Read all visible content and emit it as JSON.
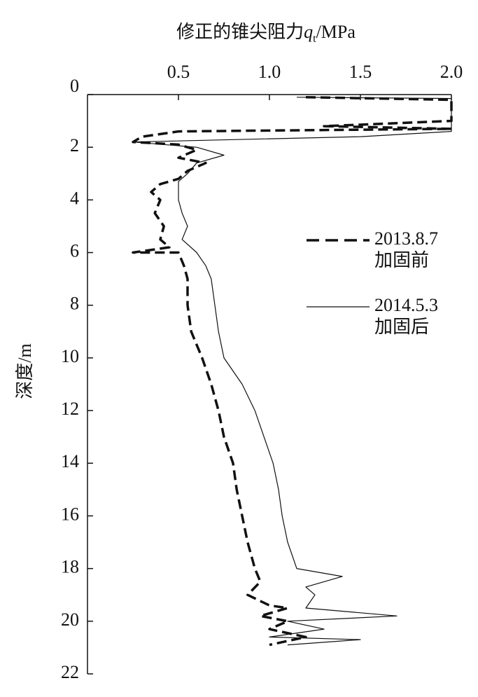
{
  "chart_data": {
    "type": "line",
    "xlabel": "修正的锥尖阻力",
    "xlabel_var": "q",
    "xlabel_sub": "t",
    "xlabel_unit": "/MPa",
    "ylabel": "深度/m",
    "xlim": [
      0,
      2.0
    ],
    "xticks": [
      0.5,
      {
        "value": 1.0,
        "label": "1.0"
      },
      1.5,
      {
        "value": 2.0,
        "label": "2.0"
      }
    ],
    "ylim": [
      0,
      22
    ],
    "yticks": [
      0,
      2,
      4,
      6,
      8,
      10,
      12,
      14,
      16,
      18,
      20,
      22
    ],
    "y_inverted": true,
    "x_axis_position": "top",
    "series": [
      {
        "name": "2013.8.7",
        "description": "加固前",
        "color": "#111111",
        "dashed": true,
        "x": [
          1.2,
          2.0,
          2.0,
          1.3,
          2.0,
          0.5,
          0.3,
          0.25,
          0.5,
          0.6,
          0.5,
          0.65,
          0.55,
          0.5,
          0.4,
          0.35,
          0.4,
          0.37,
          0.42,
          0.4,
          0.45,
          0.25,
          0.5,
          0.53,
          0.55,
          0.55,
          0.57,
          0.63,
          0.68,
          0.72,
          0.75,
          0.8,
          0.82,
          0.85,
          0.88,
          0.92,
          0.95,
          0.88,
          1.0,
          1.1,
          0.95,
          1.1,
          1.0,
          1.2,
          1.0
        ],
        "y": [
          0.1,
          0.2,
          1.0,
          1.2,
          1.3,
          1.4,
          1.6,
          1.8,
          1.9,
          2.1,
          2.4,
          2.6,
          2.9,
          3.2,
          3.4,
          3.7,
          4.0,
          4.5,
          5.0,
          5.5,
          5.8,
          6.0,
          6.0,
          6.5,
          7.0,
          8.0,
          9.0,
          10.0,
          11.0,
          12.0,
          13.0,
          14.0,
          15.0,
          16.0,
          17.0,
          18.0,
          18.5,
          19.0,
          19.4,
          19.5,
          19.8,
          20.0,
          20.3,
          20.6,
          20.9
        ]
      },
      {
        "name": "2014.5.3",
        "description": "加固后",
        "color": "#111111",
        "dashed": false,
        "x": [
          1.15,
          2.0,
          2.0,
          1.5,
          0.25,
          0.6,
          0.75,
          0.6,
          0.55,
          0.5,
          0.5,
          0.52,
          0.55,
          0.52,
          0.6,
          0.65,
          0.68,
          0.7,
          0.72,
          0.75,
          0.85,
          0.92,
          0.97,
          1.02,
          1.05,
          1.07,
          1.1,
          1.15,
          1.4,
          1.2,
          1.25,
          1.2,
          1.7,
          1.1,
          1.3,
          1.0,
          1.5,
          1.1
        ],
        "y": [
          0.1,
          0.15,
          1.4,
          1.6,
          1.8,
          2.0,
          2.3,
          2.6,
          3.0,
          3.3,
          4.0,
          4.5,
          5.0,
          5.5,
          6.0,
          6.5,
          7.0,
          8.0,
          9.0,
          10.0,
          11.0,
          12.0,
          13.0,
          14.0,
          15.0,
          16.0,
          17.0,
          18.0,
          18.3,
          18.7,
          19.0,
          19.5,
          19.8,
          20.0,
          20.3,
          20.6,
          20.7,
          20.9
        ]
      }
    ]
  }
}
